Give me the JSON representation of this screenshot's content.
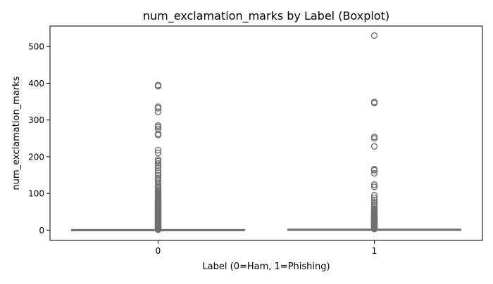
{
  "chart_data": {
    "type": "boxplot",
    "title": "num_exclamation_marks by Label (Boxplot)",
    "xlabel": "Label (0=Ham, 1=Phishing)",
    "ylabel": "num_exclamation_marks",
    "categories": [
      "0",
      "1"
    ],
    "ylim": [
      -28,
      556
    ],
    "yticks": [
      0,
      100,
      200,
      300,
      400,
      500
    ],
    "grid": false,
    "legend": "none",
    "box_color": "#75a3d2",
    "line_color": "#707070",
    "series": [
      {
        "category": "0",
        "box_values": {
          "whisker_low": 0,
          "q1": 0,
          "median": 0,
          "q3": 0,
          "whisker_high": 0
        },
        "outliers": [
          1,
          2,
          3,
          4,
          5,
          6,
          7,
          8,
          9,
          10,
          11,
          12,
          13,
          14,
          15,
          16,
          17,
          18,
          19,
          20,
          21,
          22,
          23,
          24,
          25,
          26,
          27,
          28,
          29,
          30,
          31,
          32,
          33,
          34,
          35,
          36,
          37,
          38,
          39,
          40,
          41,
          42,
          43,
          44,
          45,
          46,
          47,
          48,
          49,
          50,
          51,
          52,
          53,
          54,
          55,
          56,
          57,
          58,
          59,
          60,
          61,
          62,
          63,
          64,
          65,
          66,
          67,
          68,
          69,
          70,
          71,
          72,
          73,
          74,
          75,
          76,
          77,
          78,
          79,
          80,
          82,
          84,
          86,
          88,
          90,
          92,
          94,
          97,
          100,
          103,
          106,
          110,
          114,
          118,
          122,
          128,
          132,
          138,
          142,
          150,
          156,
          162,
          170,
          176,
          182,
          188,
          192,
          210,
          218,
          259,
          262,
          276,
          281,
          285,
          322,
          332,
          336,
          392,
          395
        ]
      },
      {
        "category": "1",
        "box_values": {
          "whisker_low": 0,
          "q1": 0,
          "median": 0,
          "q3": 1,
          "whisker_high": 2
        },
        "outliers": [
          3,
          4,
          5,
          6,
          7,
          8,
          9,
          10,
          11,
          12,
          13,
          14,
          15,
          16,
          17,
          18,
          19,
          20,
          21,
          22,
          23,
          24,
          25,
          26,
          27,
          28,
          29,
          30,
          31,
          32,
          33,
          34,
          35,
          36,
          37,
          38,
          39,
          40,
          41,
          42,
          44,
          46,
          48,
          50,
          52,
          54,
          56,
          58,
          62,
          66,
          70,
          76,
          82,
          88,
          95,
          118,
          124,
          155,
          163,
          166,
          228,
          250,
          254,
          346,
          349,
          530
        ]
      }
    ]
  }
}
